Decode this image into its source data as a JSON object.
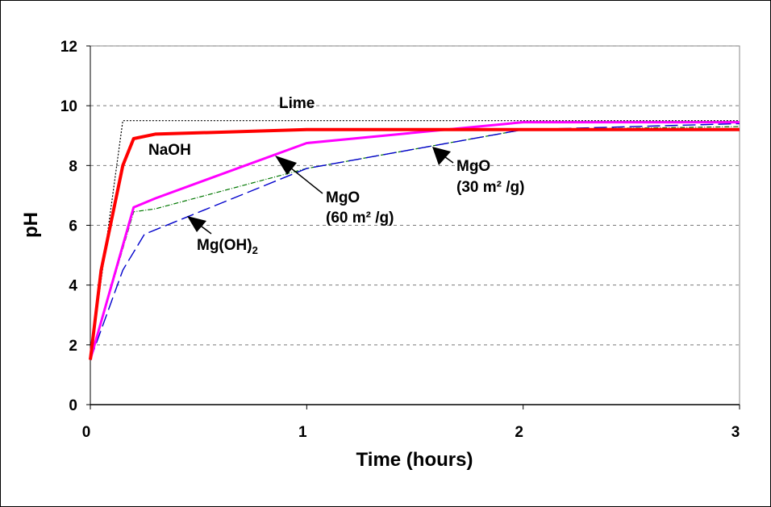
{
  "chart_data": {
    "type": "line",
    "title": "",
    "xlabel": "Time (hours)",
    "ylabel": "pH",
    "xlim": [
      0,
      3
    ],
    "ylim": [
      0,
      12
    ],
    "xticks": [
      "0",
      "1",
      "2",
      "3"
    ],
    "yticks": [
      "0",
      "2",
      "4",
      "6",
      "8",
      "10",
      "12"
    ],
    "grid": "horizontal dashed",
    "series": [
      {
        "name": "Lime",
        "color": "#000000",
        "style": "dotted",
        "x": [
          0,
          0.15,
          3
        ],
        "y": [
          1.5,
          9.5,
          9.5
        ]
      },
      {
        "name": "NaOH",
        "color": "#ff0000",
        "style": "solid-thick",
        "x": [
          0,
          0.05,
          0.15,
          0.2,
          0.3,
          1,
          2,
          3
        ],
        "y": [
          1.5,
          4.5,
          8.0,
          8.9,
          9.05,
          9.2,
          9.2,
          9.2
        ]
      },
      {
        "name": "MgO (60 m² /g)",
        "color": "#ff00ff",
        "style": "solid",
        "x": [
          0,
          0.2,
          0.3,
          1,
          2,
          3
        ],
        "y": [
          1.5,
          6.6,
          6.9,
          8.75,
          9.45,
          9.45
        ]
      },
      {
        "name": "MgO (30 m² /g)",
        "color": "#007700",
        "style": "dash-dot",
        "x": [
          0,
          0.2,
          0.3,
          1,
          2,
          3
        ],
        "y": [
          1.5,
          6.45,
          6.55,
          7.9,
          9.2,
          9.3
        ]
      },
      {
        "name": "Mg(OH)2",
        "color": "#0000cc",
        "style": "long-dash",
        "x": [
          0,
          0.15,
          0.25,
          1,
          2,
          3
        ],
        "y": [
          1.5,
          4.5,
          5.7,
          7.9,
          9.2,
          9.4
        ]
      }
    ],
    "annotations": [
      {
        "text": "Lime"
      },
      {
        "text": "NaOH"
      },
      {
        "text_lines": [
          "MgO",
          "(60 m² /g)"
        ]
      },
      {
        "text_lines": [
          "MgO",
          "(30 m² /g)"
        ]
      },
      {
        "text": "Mg(OH)",
        "subscript": "2"
      }
    ]
  }
}
